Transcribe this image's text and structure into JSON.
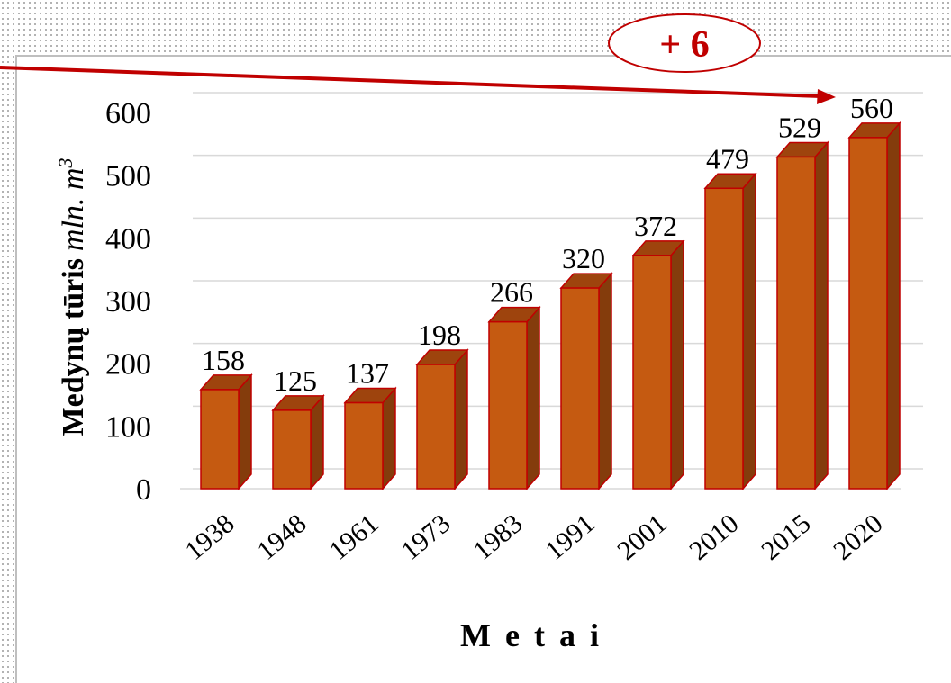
{
  "chart_data": {
    "type": "bar3d",
    "annotation": "+ 6",
    "y_label": "Medynų tūris",
    "y_unit": "mln. m",
    "y_unit_exponent": "3",
    "x_label": "Metai",
    "categories": [
      "1938",
      "1948",
      "1961",
      "1973",
      "1983",
      "1991",
      "2001",
      "2010",
      "2015",
      "2020"
    ],
    "values": [
      158,
      125,
      137,
      198,
      266,
      320,
      372,
      479,
      529,
      560
    ],
    "color": "#c55a11",
    "ylim": [
      0,
      600
    ],
    "yticks": [
      0,
      100,
      200,
      300,
      400,
      500,
      600
    ],
    "grid": true
  }
}
